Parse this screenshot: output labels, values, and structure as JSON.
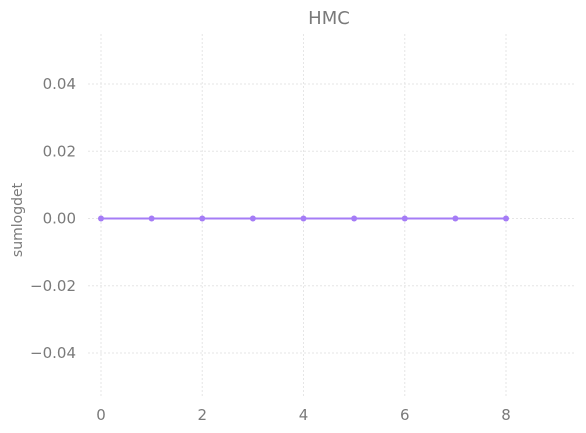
{
  "chart_data": {
    "type": "line",
    "title": "HMC",
    "xlabel": "",
    "ylabel": "sumlogdet",
    "x": [
      0,
      1,
      2,
      3,
      4,
      5,
      6,
      7,
      8
    ],
    "series": [
      {
        "values": [
          0,
          0,
          0,
          0,
          0,
          0,
          0,
          0,
          0
        ],
        "color": "#a57cf6"
      }
    ],
    "xlim": [
      -0.5,
      9.5
    ],
    "ylim": [
      -0.055,
      0.055
    ],
    "xticks": [
      0,
      2,
      4,
      6,
      8
    ],
    "xtick_labels": [
      "0",
      "2",
      "4",
      "6",
      "8"
    ],
    "yticks": [
      0.04,
      0.02,
      0.0,
      -0.02,
      -0.04
    ],
    "ytick_labels": [
      "0.04",
      "0.02",
      "0.00",
      "−0.02",
      "−0.04"
    ],
    "grid": true,
    "legend": "none"
  }
}
